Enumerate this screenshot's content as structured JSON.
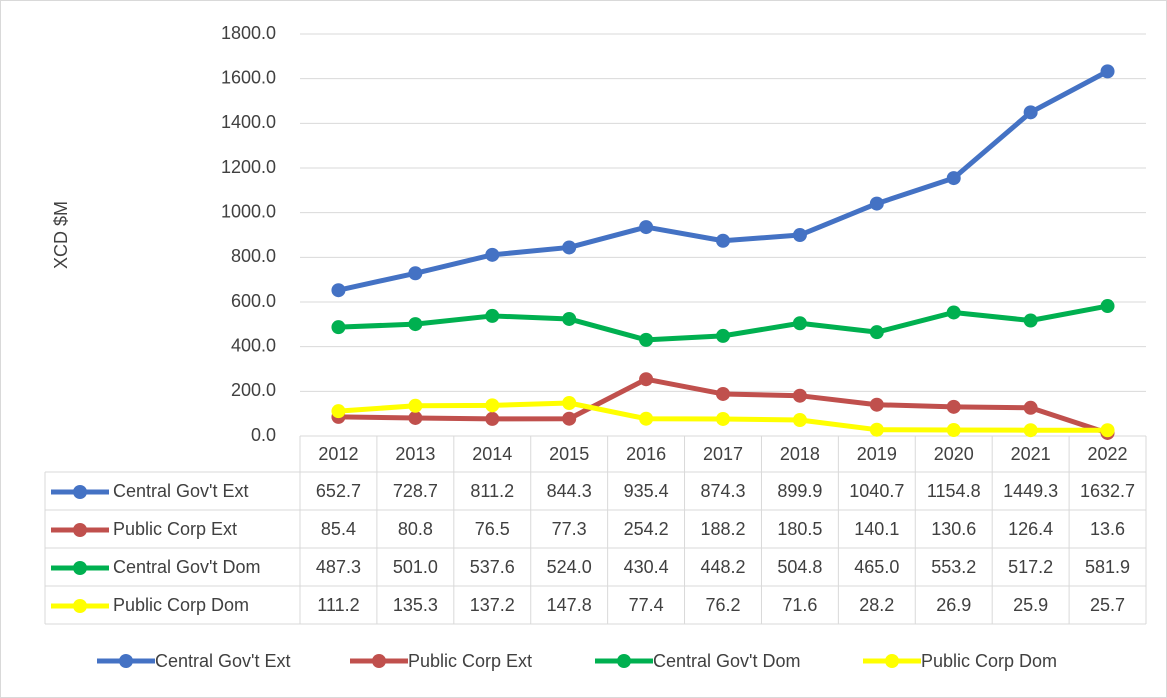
{
  "chart_data": {
    "type": "line",
    "y_axis_label": "XCD $M",
    "categories": [
      "2012",
      "2013",
      "2014",
      "2015",
      "2016",
      "2017",
      "2018",
      "2019",
      "2020",
      "2021",
      "2022"
    ],
    "series": [
      {
        "name": "Central Gov't Ext",
        "color": "#4472c4",
        "values": [
          652.7,
          728.7,
          811.2,
          844.3,
          935.4,
          874.3,
          899.9,
          1040.7,
          1154.8,
          1449.3,
          1632.7
        ],
        "value_labels": [
          "652.7",
          "728.7",
          "811.2",
          "844.3",
          "935.4",
          "874.3",
          "899.9",
          "1040.7",
          "1154.8",
          "1449.3",
          "1632.7"
        ]
      },
      {
        "name": "Public Corp Ext",
        "color": "#c0504d",
        "values": [
          85.4,
          80.8,
          76.5,
          77.3,
          254.2,
          188.2,
          180.5,
          140.1,
          130.6,
          126.4,
          13.6
        ],
        "value_labels": [
          "85.4",
          "80.8",
          "76.5",
          "77.3",
          "254.2",
          "188.2",
          "180.5",
          "140.1",
          "130.6",
          "126.4",
          "13.6"
        ]
      },
      {
        "name": "Central Gov't Dom",
        "color": "#00b050",
        "values": [
          487.3,
          501,
          537.6,
          524,
          430.4,
          448.2,
          504.8,
          465,
          553.2,
          517.2,
          581.9
        ],
        "value_labels": [
          "487.3",
          "501.0",
          "537.6",
          "524.0",
          "430.4",
          "448.2",
          "504.8",
          "465.0",
          "553.2",
          "517.2",
          "581.9"
        ]
      },
      {
        "name": "Public Corp Dom",
        "color": "#ffff00",
        "values": [
          111.2,
          135.3,
          137.2,
          147.8,
          77.4,
          76.2,
          71.6,
          28.2,
          26.9,
          25.9,
          25.7
        ],
        "value_labels": [
          "111.2",
          "135.3",
          "137.2",
          "147.8",
          "77.4",
          "76.2",
          "71.6",
          "28.2",
          "26.9",
          "25.9",
          "25.7"
        ]
      }
    ],
    "ylim": [
      0,
      1800
    ],
    "yticks": [
      {
        "value": 0,
        "label": "0.0"
      },
      {
        "value": 200,
        "label": "200.0"
      },
      {
        "value": 400,
        "label": "400.0"
      },
      {
        "value": 600,
        "label": "600.0"
      },
      {
        "value": 800,
        "label": "800.0"
      },
      {
        "value": 1000,
        "label": "1000.0"
      },
      {
        "value": 1200,
        "label": "1200.0"
      },
      {
        "value": 1400,
        "label": "1400.0"
      },
      {
        "value": 1600,
        "label": "1600.0"
      },
      {
        "value": 1800,
        "label": "1800.0"
      }
    ],
    "grid": true,
    "legend": "bottom"
  }
}
